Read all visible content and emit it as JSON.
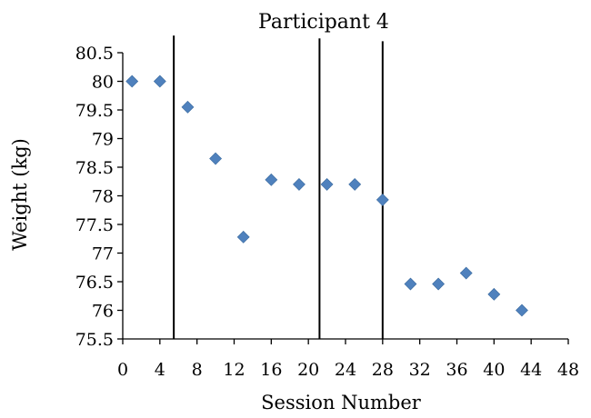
{
  "chart_data": {
    "type": "scatter",
    "title": "Participant 4",
    "xlabel": "Session Number",
    "ylabel": "Weight (kg)",
    "xlim": [
      0,
      48
    ],
    "ylim": [
      75.5,
      80.5
    ],
    "xticks": [
      0,
      4,
      8,
      12,
      16,
      20,
      24,
      28,
      32,
      36,
      40,
      44,
      48
    ],
    "yticks": [
      75.5,
      76,
      76.5,
      77,
      77.5,
      78,
      78.5,
      79,
      79.5,
      80,
      80.5
    ],
    "grid": false,
    "marker_color": "#4F81BD",
    "series": [
      {
        "points": [
          {
            "x": 1,
            "y": 80.0
          },
          {
            "x": 4,
            "y": 80.0
          },
          {
            "x": 7,
            "y": 79.55
          },
          {
            "x": 10,
            "y": 78.65
          },
          {
            "x": 13,
            "y": 77.28
          },
          {
            "x": 16,
            "y": 78.28
          },
          {
            "x": 19,
            "y": 78.2
          },
          {
            "x": 22,
            "y": 78.2
          },
          {
            "x": 25,
            "y": 78.2
          },
          {
            "x": 28,
            "y": 77.93
          },
          {
            "x": 31,
            "y": 76.46
          },
          {
            "x": 34,
            "y": 76.46
          },
          {
            "x": 37,
            "y": 76.65
          },
          {
            "x": 40,
            "y": 76.28
          },
          {
            "x": 43,
            "y": 76.0
          }
        ]
      }
    ],
    "phase_lines": [
      {
        "x": 5.5,
        "y_top": 80.8
      },
      {
        "x": 21.2,
        "y_top": 80.75
      },
      {
        "x": 28.0,
        "y_top": 80.7
      }
    ]
  }
}
